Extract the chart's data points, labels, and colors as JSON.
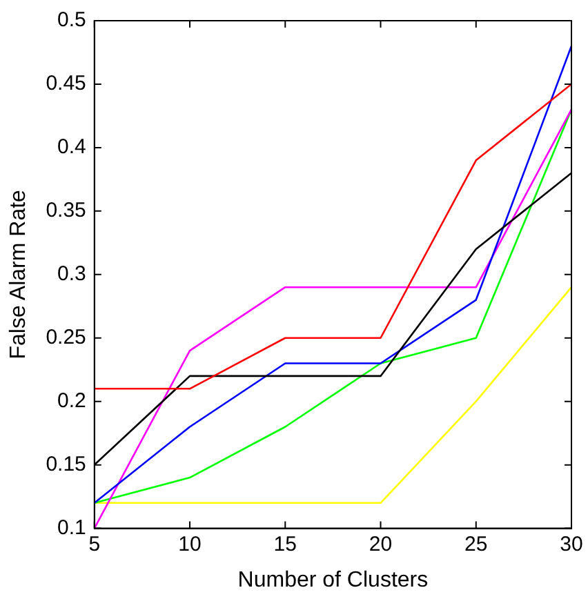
{
  "chart_data": {
    "type": "line",
    "xlabel": "Number of Clusters",
    "ylabel": "False Alarm Rate",
    "x": [
      5,
      10,
      15,
      20,
      25,
      30
    ],
    "series": [
      {
        "color": "#ff0000",
        "values": [
          0.21,
          0.21,
          0.25,
          0.25,
          0.39,
          0.45
        ]
      },
      {
        "color": "#000000",
        "values": [
          0.15,
          0.22,
          0.22,
          0.22,
          0.32,
          0.38
        ]
      },
      {
        "color": "#0000ff",
        "values": [
          0.12,
          0.18,
          0.23,
          0.23,
          0.28,
          0.48
        ]
      },
      {
        "color": "#ff00ff",
        "values": [
          0.1,
          0.24,
          0.29,
          0.29,
          0.29,
          0.43
        ]
      },
      {
        "color": "#00ff00",
        "values": [
          0.12,
          0.14,
          0.18,
          0.23,
          0.25,
          0.43
        ]
      },
      {
        "color": "#ffff00",
        "values": [
          0.12,
          0.12,
          0.12,
          0.12,
          0.2,
          0.29
        ]
      }
    ],
    "xlim": [
      5,
      30
    ],
    "xticks": [
      5,
      10,
      15,
      20,
      25,
      30
    ],
    "ylim": [
      0.1,
      0.5
    ],
    "yticks": [
      0.1,
      0.15,
      0.2,
      0.25,
      0.3,
      0.35,
      0.4,
      0.45,
      0.5
    ],
    "grid": false,
    "legend": false,
    "marker": "none",
    "line_style": "solid"
  }
}
